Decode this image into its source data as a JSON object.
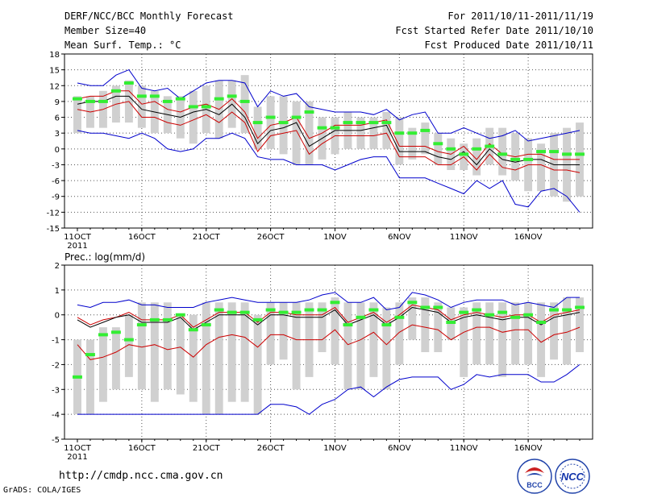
{
  "header": {
    "title": "DERF/NCC/BCC Monthly Forecast",
    "member_size": "Member Size=40",
    "variable": "Mean Surf. Temp.: °C",
    "period": "For 2011/10/11-2011/11/19",
    "started": "Fcst Started Refer Date 2011/10/10",
    "produced": "Fcst Produced Date 2011/10/11"
  },
  "footer": {
    "url": "http://cmdp.ncc.cma.gov.cn",
    "grads": "GrADS: COLA/IGES",
    "logo_bcc": "BCC",
    "logo_ncc": "NCC"
  },
  "colors": {
    "max_line": "#0000cc",
    "p75_line": "#cc0000",
    "mean_line": "#000000",
    "box": "#d0d0d0",
    "marker": "#33ee33",
    "grid": "#555555"
  },
  "chart_data": [
    {
      "type": "box-ensemble",
      "ylabel": "",
      "ylim": [
        -15,
        18
      ],
      "yticks": [
        -15,
        -12,
        -9,
        -6,
        -3,
        0,
        3,
        6,
        9,
        12,
        15,
        18
      ],
      "xtick_labels": [
        "11OCT",
        "16OCT",
        "21OCT",
        "26OCT",
        "1NOV",
        "6NOV",
        "11NOV",
        "16NOV"
      ],
      "xtick_days": [
        1,
        6,
        11,
        16,
        21,
        26,
        31,
        36
      ],
      "year_label": "2011",
      "xlim": [
        0,
        41
      ],
      "days": [
        1,
        2,
        3,
        4,
        5,
        6,
        7,
        8,
        9,
        10,
        11,
        12,
        13,
        14,
        15,
        16,
        17,
        18,
        19,
        20,
        21,
        22,
        23,
        24,
        25,
        26,
        27,
        28,
        29,
        30,
        31,
        32,
        33,
        34,
        35,
        36,
        37,
        38,
        39,
        40
      ],
      "box_low": [
        3,
        4,
        4,
        5,
        5,
        4,
        3,
        3,
        2,
        1,
        3,
        2,
        4,
        3,
        0,
        0,
        -1,
        -3,
        -3,
        -2,
        -1,
        0,
        0,
        0,
        0,
        -3,
        -2,
        -1,
        -3,
        -4,
        -4,
        -5,
        -3,
        -5,
        -6,
        -8,
        -8,
        -9,
        -10,
        -9
      ],
      "box_high": [
        10,
        10,
        11,
        12,
        13,
        12,
        11,
        10,
        10,
        11,
        12,
        13,
        13,
        14,
        8,
        10,
        10,
        9,
        9,
        6,
        6,
        7,
        6,
        6,
        7,
        6,
        4,
        5,
        3,
        2,
        1,
        2,
        4,
        4,
        3,
        2,
        1,
        3,
        4,
        5
      ],
      "max": [
        12.5,
        12.0,
        12.0,
        14,
        15,
        11.5,
        11,
        11.5,
        9.5,
        11,
        12.5,
        13,
        13,
        12.5,
        8,
        11,
        10,
        10.5,
        8,
        7.5,
        7,
        7,
        7,
        6.5,
        7.5,
        5.5,
        6.5,
        7,
        3,
        3,
        4,
        3,
        2,
        2.5,
        3.5,
        1.5,
        2,
        2.5,
        3,
        3.5
      ],
      "p75": [
        9.5,
        10,
        10,
        11,
        11,
        8.5,
        9,
        7.5,
        7,
        8,
        8.5,
        7.5,
        9.5,
        7,
        2,
        4.5,
        5,
        6,
        2,
        3,
        4.5,
        4.5,
        4.5,
        5,
        5.5,
        0.5,
        0.5,
        0.5,
        -0.5,
        -1,
        0.5,
        -2,
        1,
        -1,
        -1.5,
        -1,
        -1,
        -2,
        -2,
        -2
      ],
      "mean": [
        8.5,
        9,
        9,
        10,
        10,
        7.5,
        7,
        6.5,
        6,
        7,
        7.5,
        6.5,
        8.5,
        6,
        1,
        3.5,
        4,
        5,
        0.5,
        2,
        3.5,
        3.5,
        3.5,
        4,
        4.5,
        -0.5,
        -0.5,
        -0.5,
        -1.5,
        -2,
        -0.5,
        -3,
        0,
        -2,
        -2.5,
        -2,
        -2,
        -3,
        -3,
        -3
      ],
      "p25": [
        7.5,
        7,
        7.5,
        8.5,
        9,
        6,
        6,
        5,
        4.5,
        5.5,
        6.5,
        5,
        7,
        5,
        -0.5,
        2.5,
        3,
        3.5,
        -1,
        1,
        2.5,
        2.5,
        2.5,
        2.5,
        3,
        -1.5,
        -1.5,
        -1.5,
        -3,
        -3,
        -1.5,
        -4,
        -1,
        -3.5,
        -4,
        -3,
        -3,
        -4,
        -4,
        -4.5
      ],
      "min": [
        3.5,
        3,
        3,
        2.5,
        2,
        3,
        2,
        0,
        -0.5,
        0,
        2,
        2,
        3,
        2,
        -1.5,
        -2,
        -2,
        -3,
        -3,
        -3,
        -4,
        -3,
        -2,
        -1.5,
        -1.5,
        -5.5,
        -5.5,
        -5.5,
        -6.5,
        -7.5,
        -8.5,
        -6,
        -7.5,
        -6,
        -10.5,
        -11,
        -8,
        -7.5,
        -9,
        -12
      ],
      "marker": [
        9.5,
        9,
        9,
        11,
        12.5,
        10,
        10,
        9,
        9.5,
        8,
        8,
        9.5,
        10,
        9,
        5,
        6,
        5,
        6,
        7,
        4,
        4,
        5,
        5,
        5,
        5,
        3,
        3,
        3.5,
        1,
        0,
        -1,
        0,
        0.5,
        -1,
        -2,
        -2,
        -0.5,
        -0.5,
        -1,
        -1
      ]
    },
    {
      "type": "box-ensemble",
      "ylabel": "Prec.: log(mm/d)",
      "ylim": [
        -5,
        2
      ],
      "yticks": [
        -5,
        -4,
        -3,
        -2,
        -1,
        0,
        1,
        2
      ],
      "xtick_labels": [
        "11OCT",
        "16OCT",
        "21OCT",
        "26OCT",
        "1NOV",
        "6NOV",
        "11NOV",
        "16NOV"
      ],
      "xtick_days": [
        1,
        6,
        11,
        16,
        21,
        26,
        31,
        36
      ],
      "year_label": "2011",
      "xlim": [
        0,
        41
      ],
      "days": [
        1,
        2,
        3,
        4,
        5,
        6,
        7,
        8,
        9,
        10,
        11,
        12,
        13,
        14,
        15,
        16,
        17,
        18,
        19,
        20,
        21,
        22,
        23,
        24,
        25,
        26,
        27,
        28,
        29,
        30,
        31,
        32,
        33,
        34,
        35,
        36,
        37,
        38,
        39,
        40
      ],
      "box_low": [
        -4,
        -4,
        -3.5,
        -3,
        -2.5,
        -3,
        -3.5,
        -3,
        -3.2,
        -3.5,
        -4,
        -4,
        -3.5,
        -3.5,
        -4,
        -2,
        -1.8,
        -3,
        -2.5,
        -1.5,
        -2,
        -3,
        -3,
        -2.5,
        -3,
        -2,
        -1,
        -1.5,
        -1.5,
        -1,
        -2.5,
        -2,
        -2,
        -2.5,
        -2,
        -2,
        -2.5,
        -1.8,
        -2,
        -1.5
      ],
      "box_high": [
        -1,
        -1,
        -0.5,
        -0.5,
        0,
        0.5,
        0.5,
        0.5,
        0,
        0,
        0.5,
        0.5,
        0.5,
        0.5,
        0,
        0.5,
        0.5,
        0.5,
        0.5,
        0.5,
        0.7,
        0.5,
        0.5,
        0.5,
        0.3,
        0.5,
        0.7,
        0.7,
        0.5,
        0.3,
        0.3,
        0.5,
        0.5,
        0.5,
        0.5,
        0.5,
        0.5,
        0.5,
        0.7,
        0.7
      ],
      "max": [
        0.4,
        0.3,
        0.5,
        0.5,
        0.6,
        0.4,
        0.4,
        0.3,
        0.3,
        0.3,
        0.5,
        0.6,
        0.7,
        0.6,
        0.5,
        0.5,
        0.5,
        0.5,
        0.6,
        0.8,
        0.9,
        0.5,
        0.5,
        0.7,
        0.2,
        0.3,
        0.9,
        0.8,
        0.6,
        0.3,
        0.5,
        0.6,
        0.6,
        0.6,
        0.4,
        0.5,
        0.4,
        0.3,
        0.7,
        0.7
      ],
      "p75": [
        -0.1,
        -0.4,
        -0.2,
        -0.1,
        0.1,
        -0.2,
        -0.2,
        -0.2,
        0,
        -0.5,
        -0.2,
        0.1,
        0.1,
        0.1,
        -0.3,
        0.1,
        0.1,
        0,
        0,
        0,
        0.3,
        -0.3,
        -0.1,
        0.1,
        -0.3,
        0,
        0.4,
        0.3,
        0.2,
        -0.2,
        0,
        0.1,
        0,
        -0.1,
        0,
        0,
        -0.3,
        0,
        0.1,
        0.2
      ],
      "mean": [
        -0.2,
        -0.5,
        -0.3,
        -0.1,
        0,
        -0.3,
        -0.3,
        -0.3,
        -0.1,
        -0.6,
        -0.3,
        0,
        0,
        0,
        -0.4,
        0,
        0,
        -0.1,
        -0.1,
        -0.1,
        0.2,
        -0.4,
        -0.2,
        0,
        -0.4,
        -0.1,
        0.3,
        0.2,
        0.1,
        -0.3,
        -0.1,
        0,
        -0.1,
        -0.2,
        -0.1,
        -0.1,
        -0.4,
        -0.1,
        0,
        0.1
      ],
      "p25": [
        -1.2,
        -1.8,
        -1.7,
        -1.5,
        -1.2,
        -1.3,
        -1.2,
        -1.4,
        -1.3,
        -1.7,
        -1.2,
        -0.9,
        -0.8,
        -0.9,
        -1.3,
        -0.8,
        -0.8,
        -1,
        -1,
        -1,
        -0.6,
        -1.2,
        -1,
        -0.7,
        -1.2,
        -0.7,
        -0.4,
        -0.5,
        -0.6,
        -1,
        -0.7,
        -0.5,
        -0.5,
        -0.7,
        -0.6,
        -0.6,
        -1.1,
        -0.8,
        -0.7,
        -0.5
      ],
      "min": [
        -4,
        -4,
        -4,
        -4,
        -4,
        -4,
        -4,
        -4,
        -4,
        -4,
        -4,
        -4,
        -4,
        -4,
        -4,
        -3.6,
        -3.6,
        -3.7,
        -4,
        -3.6,
        -3.4,
        -3,
        -2.9,
        -3.3,
        -2.9,
        -2.6,
        -2.5,
        -2.5,
        -2.5,
        -3,
        -2.8,
        -2.4,
        -2.5,
        -2.4,
        -2.4,
        -2.4,
        -2.7,
        -2.7,
        -2.4,
        -2
      ],
      "marker": [
        -2.5,
        -1.6,
        -0.8,
        -0.7,
        -1,
        -0.4,
        -0.2,
        -0.2,
        0,
        -0.6,
        -0.4,
        0.2,
        0.1,
        0.1,
        -0.2,
        0.2,
        0.1,
        0.1,
        0.2,
        0.2,
        0.5,
        -0.4,
        -0.1,
        0.2,
        -0.4,
        -0.1,
        0.5,
        0.3,
        0.3,
        -0.3,
        0.1,
        0.2,
        0,
        0.1,
        -0.1,
        0,
        -0.3,
        0.2,
        0.2,
        0.3
      ]
    }
  ]
}
